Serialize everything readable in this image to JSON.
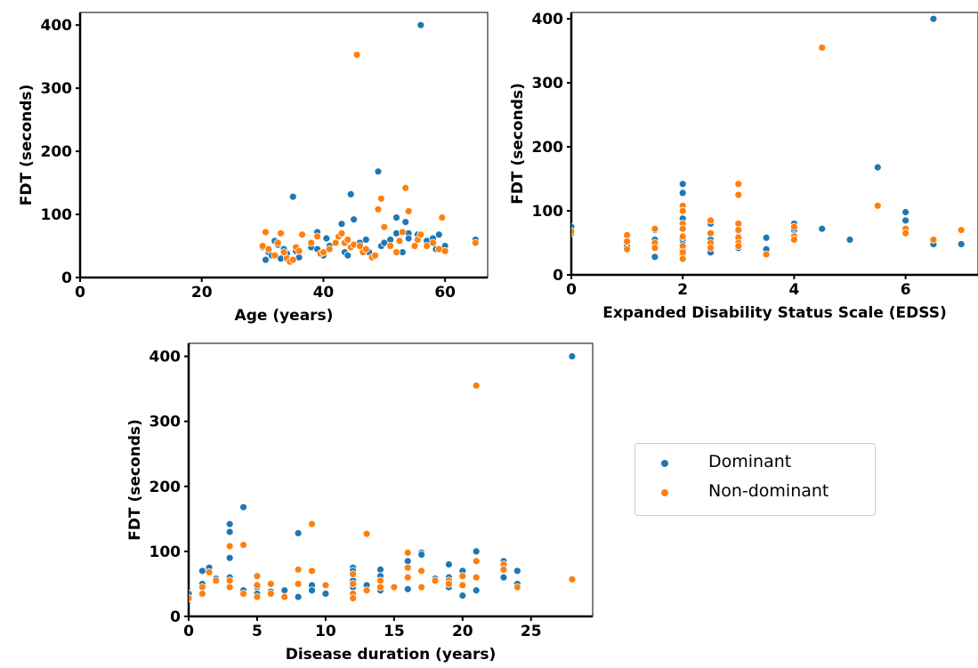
{
  "colors": {
    "dominant": "#1f77b4",
    "non_dominant": "#ff7f0e",
    "axis": "#000000",
    "legend_border": "#cccccc"
  },
  "legend": {
    "entries": [
      {
        "key": "dominant",
        "label": "Dominant"
      },
      {
        "key": "non_dominant",
        "label": "Non-dominant"
      }
    ]
  },
  "chart_data": [
    {
      "type": "scatter",
      "title": "",
      "xlabel": "Age (years)",
      "ylabel": "FDT (seconds)",
      "xlim": [
        0,
        67
      ],
      "ylim": [
        0,
        420
      ],
      "xticks": [
        0,
        20,
        40,
        60
      ],
      "yticks": [
        0,
        100,
        200,
        300,
        400
      ],
      "grid": false,
      "series": [
        {
          "name": "Dominant",
          "color_key": "dominant",
          "points": [
            [
              30,
              48
            ],
            [
              30.5,
              28
            ],
            [
              31,
              40
            ],
            [
              31.5,
              35
            ],
            [
              32,
              58
            ],
            [
              32.5,
              52
            ],
            [
              33,
              30
            ],
            [
              33.5,
              45
            ],
            [
              34,
              38
            ],
            [
              35,
              128
            ],
            [
              35.5,
              42
            ],
            [
              36,
              32
            ],
            [
              38,
              48
            ],
            [
              39,
              45
            ],
            [
              39,
              72
            ],
            [
              40,
              35
            ],
            [
              40.5,
              62
            ],
            [
              41,
              50
            ],
            [
              42,
              55
            ],
            [
              43,
              85
            ],
            [
              43.5,
              40
            ],
            [
              44,
              35
            ],
            [
              44.5,
              132
            ],
            [
              45,
              92
            ],
            [
              46,
              55
            ],
            [
              47,
              60
            ],
            [
              47.5,
              40
            ],
            [
              49,
              168
            ],
            [
              49.5,
              50
            ],
            [
              50,
              55
            ],
            [
              51,
              60
            ],
            [
              52,
              95
            ],
            [
              52,
              70
            ],
            [
              53,
              40
            ],
            [
              53.5,
              88
            ],
            [
              54,
              70
            ],
            [
              54,
              62
            ],
            [
              55,
              50
            ],
            [
              55.5,
              68
            ],
            [
              56,
              400
            ],
            [
              57,
              58
            ],
            [
              58,
              62
            ],
            [
              58.5,
              45
            ],
            [
              59,
              68
            ],
            [
              60,
              42
            ],
            [
              60,
              50
            ],
            [
              65,
              60
            ]
          ]
        },
        {
          "name": "Non-dominant",
          "color_key": "non_dominant",
          "points": [
            [
              30,
              50
            ],
            [
              30.5,
              72
            ],
            [
              31,
              45
            ],
            [
              32,
              35
            ],
            [
              32.5,
              55
            ],
            [
              33,
              70
            ],
            [
              33.5,
              40
            ],
            [
              34,
              30
            ],
            [
              34.5,
              25
            ],
            [
              35,
              28
            ],
            [
              35.5,
              48
            ],
            [
              36,
              42
            ],
            [
              36.5,
              68
            ],
            [
              38,
              55
            ],
            [
              39,
              65
            ],
            [
              39.5,
              38
            ],
            [
              40,
              40
            ],
            [
              41,
              45
            ],
            [
              42,
              55
            ],
            [
              42.5,
              65
            ],
            [
              43,
              70
            ],
            [
              43.5,
              55
            ],
            [
              44,
              60
            ],
            [
              44.5,
              48
            ],
            [
              45,
              52
            ],
            [
              45.5,
              353
            ],
            [
              46,
              50
            ],
            [
              46.5,
              40
            ],
            [
              47,
              45
            ],
            [
              48,
              32
            ],
            [
              48.5,
              35
            ],
            [
              49,
              108
            ],
            [
              49.5,
              125
            ],
            [
              50,
              80
            ],
            [
              51,
              50
            ],
            [
              52,
              40
            ],
            [
              52.5,
              58
            ],
            [
              53,
              72
            ],
            [
              53.5,
              142
            ],
            [
              54,
              105
            ],
            [
              55,
              50
            ],
            [
              55.5,
              60
            ],
            [
              56,
              68
            ],
            [
              57,
              50
            ],
            [
              58,
              55
            ],
            [
              59,
              45
            ],
            [
              59.5,
              95
            ],
            [
              60,
              42
            ],
            [
              65,
              55
            ]
          ]
        }
      ]
    },
    {
      "type": "scatter",
      "title": "",
      "xlabel": "Expanded Disability Status Scale (EDSS)",
      "ylabel": "FDT (seconds)",
      "xlim": [
        0,
        7.3
      ],
      "ylim": [
        0,
        410
      ],
      "xticks": [
        0,
        2,
        4,
        6
      ],
      "yticks": [
        0,
        100,
        200,
        300,
        400
      ],
      "grid": false,
      "series": [
        {
          "name": "Dominant",
          "color_key": "dominant",
          "points": [
            [
              0,
              75
            ],
            [
              0,
              65
            ],
            [
              1,
              45
            ],
            [
              1,
              60
            ],
            [
              1.5,
              28
            ],
            [
              1.5,
              55
            ],
            [
              1.5,
              70
            ],
            [
              2,
              142
            ],
            [
              2,
              128
            ],
            [
              2,
              88
            ],
            [
              2,
              55
            ],
            [
              2,
              48
            ],
            [
              2,
              40
            ],
            [
              2,
              32
            ],
            [
              2.5,
              80
            ],
            [
              2.5,
              55
            ],
            [
              2.5,
              48
            ],
            [
              2.5,
              35
            ],
            [
              3,
              70
            ],
            [
              3,
              60
            ],
            [
              3,
              55
            ],
            [
              3,
              48
            ],
            [
              3,
              42
            ],
            [
              3.5,
              58
            ],
            [
              3.5,
              40
            ],
            [
              4,
              80
            ],
            [
              4,
              70
            ],
            [
              4,
              62
            ],
            [
              4,
              55
            ],
            [
              4.5,
              72
            ],
            [
              5,
              55
            ],
            [
              5.5,
              168
            ],
            [
              6,
              98
            ],
            [
              6,
              85
            ],
            [
              6,
              70
            ],
            [
              6.5,
              400
            ],
            [
              6.5,
              48
            ],
            [
              7,
              48
            ]
          ]
        },
        {
          "name": "Non-dominant",
          "color_key": "non_dominant",
          "points": [
            [
              0,
              68
            ],
            [
              1,
              62
            ],
            [
              1,
              52
            ],
            [
              1,
              40
            ],
            [
              1.5,
              72
            ],
            [
              1.5,
              50
            ],
            [
              1.5,
              42
            ],
            [
              2,
              108
            ],
            [
              2,
              100
            ],
            [
              2,
              80
            ],
            [
              2,
              72
            ],
            [
              2,
              60
            ],
            [
              2,
              45
            ],
            [
              2,
              35
            ],
            [
              2,
              25
            ],
            [
              2.5,
              85
            ],
            [
              2.5,
              65
            ],
            [
              2.5,
              50
            ],
            [
              2.5,
              42
            ],
            [
              3,
              142
            ],
            [
              3,
              125
            ],
            [
              3,
              80
            ],
            [
              3,
              70
            ],
            [
              3,
              58
            ],
            [
              3,
              50
            ],
            [
              3,
              45
            ],
            [
              3.5,
              32
            ],
            [
              4,
              75
            ],
            [
              4,
              60
            ],
            [
              4,
              55
            ],
            [
              4.5,
              355
            ],
            [
              5.5,
              108
            ],
            [
              6,
              72
            ],
            [
              6,
              65
            ],
            [
              6.5,
              55
            ],
            [
              7,
              70
            ]
          ]
        }
      ]
    },
    {
      "type": "scatter",
      "title": "",
      "xlabel": "Disease duration (years)",
      "ylabel": "FDT (seconds)",
      "xlim": [
        0,
        29.5
      ],
      "ylim": [
        0,
        420
      ],
      "xticks": [
        0,
        5,
        10,
        15,
        20,
        25
      ],
      "yticks": [
        0,
        100,
        200,
        300,
        400
      ],
      "grid": false,
      "series": [
        {
          "name": "Dominant",
          "color_key": "dominant",
          "points": [
            [
              0,
              35
            ],
            [
              1,
              70
            ],
            [
              1,
              50
            ],
            [
              1.5,
              75
            ],
            [
              2,
              58
            ],
            [
              3,
              142
            ],
            [
              3,
              130
            ],
            [
              3,
              90
            ],
            [
              3,
              60
            ],
            [
              4,
              168
            ],
            [
              4,
              40
            ],
            [
              5,
              45
            ],
            [
              5,
              35
            ],
            [
              6,
              38
            ],
            [
              7,
              40
            ],
            [
              8,
              128
            ],
            [
              8,
              30
            ],
            [
              9,
              48
            ],
            [
              9,
              40
            ],
            [
              10,
              35
            ],
            [
              12,
              75
            ],
            [
              12,
              70
            ],
            [
              12,
              55
            ],
            [
              12,
              45
            ],
            [
              13,
              48
            ],
            [
              14,
              72
            ],
            [
              14,
              62
            ],
            [
              14,
              40
            ],
            [
              15,
              45
            ],
            [
              16,
              85
            ],
            [
              16,
              42
            ],
            [
              17,
              98
            ],
            [
              17,
              95
            ],
            [
              17,
              45
            ],
            [
              18,
              58
            ],
            [
              19,
              80
            ],
            [
              19,
              60
            ],
            [
              19,
              45
            ],
            [
              20,
              70
            ],
            [
              20,
              32
            ],
            [
              21,
              100
            ],
            [
              21,
              40
            ],
            [
              23,
              85
            ],
            [
              23,
              60
            ],
            [
              24,
              70
            ],
            [
              24,
              50
            ],
            [
              28,
              400
            ]
          ]
        },
        {
          "name": "Non-dominant",
          "color_key": "non_dominant",
          "points": [
            [
              0,
              28
            ],
            [
              1,
              45
            ],
            [
              1,
              35
            ],
            [
              1.5,
              68
            ],
            [
              2,
              55
            ],
            [
              3,
              108
            ],
            [
              3,
              55
            ],
            [
              3,
              45
            ],
            [
              4,
              110
            ],
            [
              4,
              35
            ],
            [
              5,
              62
            ],
            [
              5,
              48
            ],
            [
              5,
              30
            ],
            [
              6,
              50
            ],
            [
              6,
              35
            ],
            [
              7,
              30
            ],
            [
              8,
              72
            ],
            [
              8,
              50
            ],
            [
              9,
              142
            ],
            [
              9,
              70
            ],
            [
              10,
              48
            ],
            [
              12,
              65
            ],
            [
              12,
              50
            ],
            [
              12,
              35
            ],
            [
              12,
              28
            ],
            [
              13,
              127
            ],
            [
              13,
              40
            ],
            [
              14,
              55
            ],
            [
              14,
              45
            ],
            [
              15,
              45
            ],
            [
              16,
              98
            ],
            [
              16,
              75
            ],
            [
              16,
              60
            ],
            [
              17,
              70
            ],
            [
              17,
              45
            ],
            [
              18,
              55
            ],
            [
              19,
              55
            ],
            [
              19,
              50
            ],
            [
              20,
              62
            ],
            [
              20,
              48
            ],
            [
              21,
              355
            ],
            [
              21,
              85
            ],
            [
              21,
              60
            ],
            [
              23,
              80
            ],
            [
              23,
              72
            ],
            [
              24,
              45
            ],
            [
              28,
              57
            ]
          ]
        }
      ]
    }
  ]
}
